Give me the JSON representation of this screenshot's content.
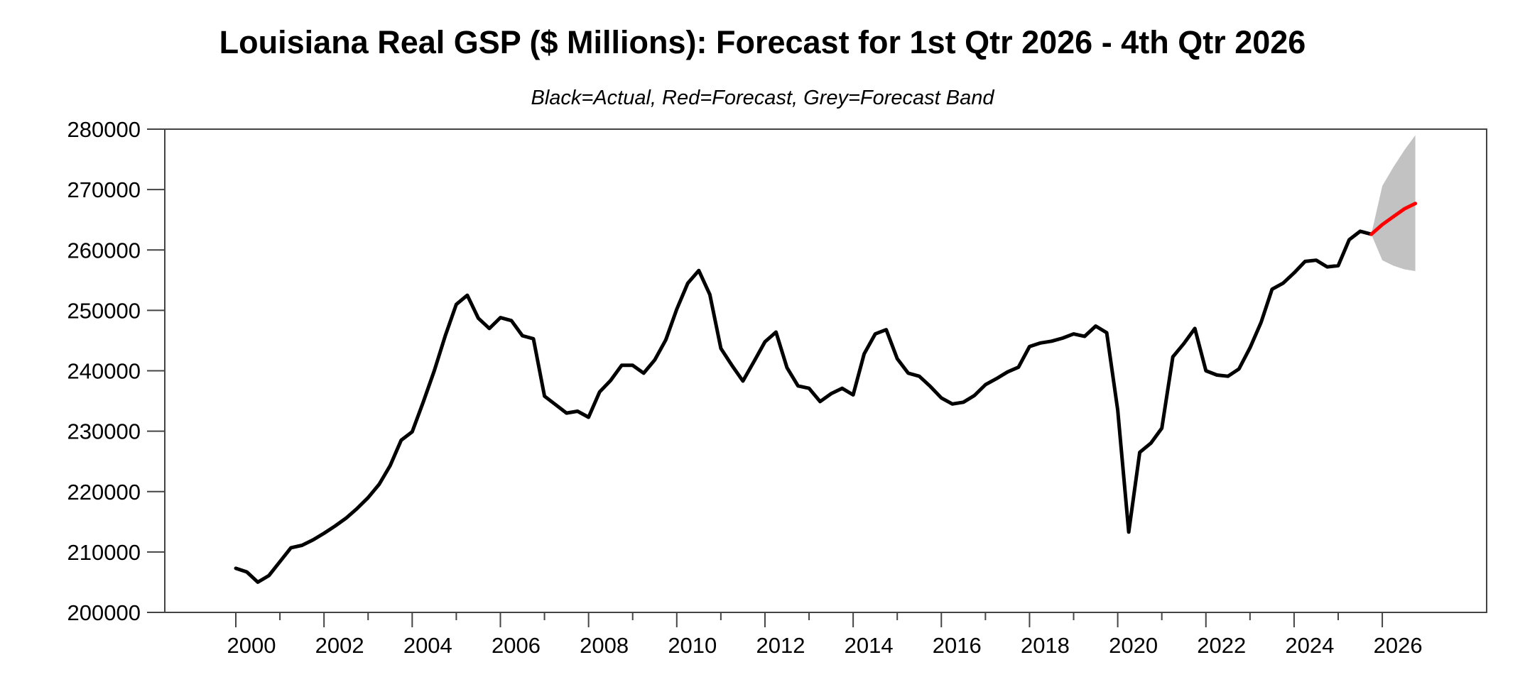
{
  "chart_data": {
    "type": "line",
    "title": "Louisiana Real GSP ($ Millions): Forecast for 1st Qtr 2026 - 4th Qtr 2026",
    "subtitle": "Black=Actual, Red=Forecast, Grey=Forecast Band",
    "xlabel": "",
    "ylabel": "",
    "grid": "off",
    "legend": "none",
    "colors": {
      "actual": "#000000",
      "forecast": "#ff0000",
      "band": "#c2c2c2",
      "frame": "#444444"
    },
    "y_axis": {
      "min": 200000,
      "max": 280000,
      "tick_interval": 10000,
      "tick_labels": [
        "200000",
        "210000",
        "220000",
        "230000",
        "240000",
        "250000",
        "260000",
        "270000",
        "280000"
      ]
    },
    "x_axis": {
      "major_tick_years": [
        2000,
        2002,
        2004,
        2006,
        2008,
        2010,
        2012,
        2014,
        2016,
        2018,
        2020,
        2022,
        2024,
        2026
      ],
      "minor_tick_years": [
        2001,
        2003,
        2005,
        2007,
        2009,
        2011,
        2013,
        2015,
        2017,
        2019,
        2021,
        2023,
        2025
      ],
      "major_tick_labels": [
        "2000",
        "2002",
        "2004",
        "2006",
        "2008",
        "2010",
        "2012",
        "2014",
        "2016",
        "2018",
        "2020",
        "2022",
        "2024",
        "2026"
      ]
    },
    "series": [
      {
        "name": "Actual",
        "color_key": "actual",
        "start": "2000Q1",
        "frequency": "quarterly",
        "values": [
          207300,
          206700,
          205000,
          206100,
          208400,
          210700,
          211100,
          212000,
          213100,
          214300,
          215600,
          217200,
          219000,
          221200,
          224300,
          228500,
          229900,
          234800,
          240000,
          245800,
          251000,
          252500,
          248700,
          247000,
          248800,
          248300,
          245800,
          245300,
          235800,
          234400,
          233000,
          233300,
          232300,
          236500,
          238400,
          240900,
          240900,
          239600,
          241800,
          245100,
          250200,
          254500,
          256600,
          252600,
          243700,
          240900,
          238300,
          241500,
          244800,
          246400,
          240500,
          237500,
          237100,
          234900,
          236200,
          237100,
          236000,
          242800,
          246100,
          246800,
          242000,
          239600,
          239100,
          237400,
          235500,
          234500,
          234800,
          235900,
          237700,
          238700,
          239800,
          240600,
          244000,
          244600,
          244900,
          245400,
          246100,
          245700,
          247400,
          246300,
          233500,
          213300,
          226500,
          228000,
          230500,
          242300,
          244500,
          247000,
          240000,
          239300,
          239100,
          240300,
          243800,
          248000,
          253500,
          254500,
          256200,
          258100,
          258300,
          257200,
          257400,
          261700,
          263100,
          262600
        ]
      },
      {
        "name": "Forecast",
        "color_key": "forecast",
        "start": "2026Q1",
        "frequency": "quarterly",
        "values": [
          264200,
          265500,
          266800,
          267700
        ]
      }
    ],
    "forecast_band": {
      "name": "Forecast Band",
      "color_key": "band",
      "start": "2026Q1",
      "frequency": "quarterly",
      "upper": [
        270600,
        273700,
        276500,
        279000
      ],
      "lower": [
        258300,
        257400,
        256800,
        256500
      ]
    }
  }
}
